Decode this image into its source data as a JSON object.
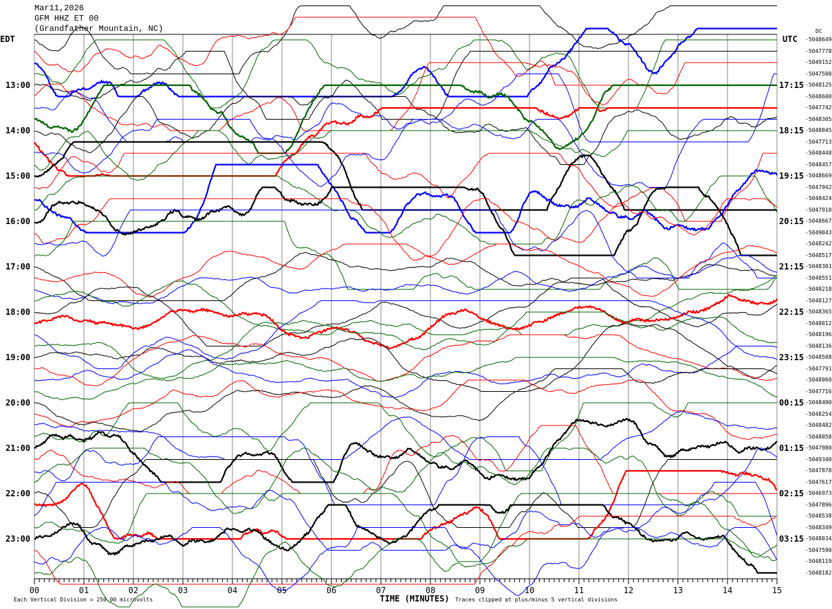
{
  "header": {
    "date": "Mar11,2026",
    "station": "GFM HHZ ET 00",
    "location": "(Grandfather Mountain, NC)"
  },
  "left_axis_label": "EDT",
  "right_axis_label": "UTC",
  "dc_label": "DC",
  "chart_data": {
    "type": "line",
    "xlabel": "TIME (MINUTES)",
    "xlim": [
      0,
      15
    ],
    "x_ticks": [
      "00",
      "01",
      "02",
      "03",
      "04",
      "05",
      "06",
      "07",
      "08",
      "09",
      "10",
      "11",
      "12",
      "13",
      "14",
      "15"
    ],
    "left_time_labels": [
      "13:00",
      "14:00",
      "15:00",
      "16:00",
      "17:00",
      "18:00",
      "19:00",
      "20:00",
      "21:00",
      "22:00",
      "23:00"
    ],
    "right_time_labels": [
      "17:15",
      "18:15",
      "19:15",
      "20:15",
      "21:15",
      "22:15",
      "23:15",
      "00:15",
      "01:15",
      "02:15",
      "03:15"
    ],
    "trace_colors": [
      "#000000",
      "#ff0000",
      "#0000ff",
      "#006400"
    ],
    "dc_offsets": [
      "-5048649",
      "-5047778",
      "-5049152",
      "-5047500",
      "-5048125",
      "-5048600",
      "-5047742",
      "-5048305",
      "-5048045",
      "-5047713",
      "-5048448",
      "-5048457",
      "-5048669",
      "-5047942",
      "-5048424",
      "-5047910",
      "-5048667",
      "-5049043",
      "-5048242",
      "-5048517",
      "-5048301",
      "-5048551",
      "-5048218",
      "-5048127",
      "-5048365",
      "-5048012",
      "-5048196",
      "-5048136",
      "-5048508",
      "-5047791",
      "-5048060",
      "-5047716",
      "-5048490",
      "-5048254",
      "-5048482",
      "-5048058",
      "-5047980",
      "-5049340",
      "-5047878",
      "-5047617",
      "-5046973",
      "-5047896",
      "-5048538",
      "-5048349",
      "-5048034",
      "-5047590",
      "-5048119",
      "-5048182"
    ]
  },
  "footer": {
    "scale": "Each Vertical Division =  250.00 microvolts",
    "clip": "Traces clipped at plus/minus 5 vertical divisions"
  }
}
